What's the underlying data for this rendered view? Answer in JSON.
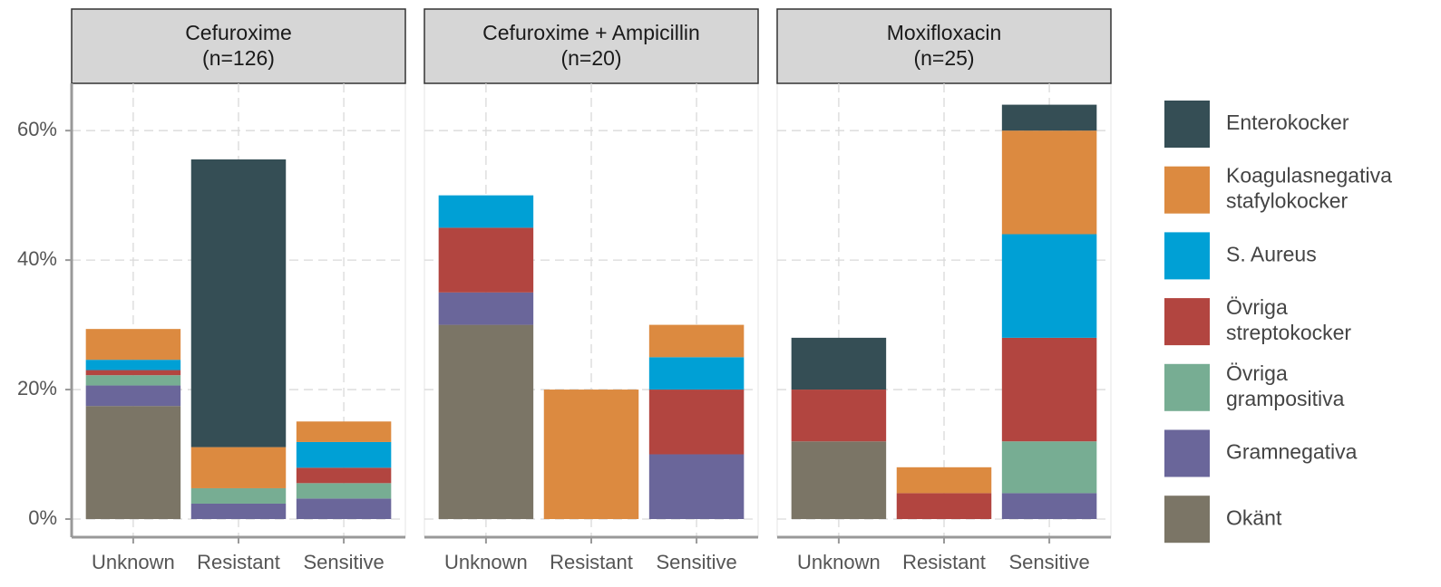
{
  "chart_data": [
    {
      "type": "bar",
      "stacked": true,
      "title": "Cefuroxime",
      "subtitle": "(n=126)",
      "categories": [
        "Unknown",
        "Resistant",
        "Sensitive"
      ],
      "ylim": [
        -2.8,
        67.3
      ],
      "yticks": [
        {
          "value": 0,
          "label": "0%"
        },
        {
          "value": 20,
          "label": "20%"
        },
        {
          "value": 40,
          "label": "40%"
        },
        {
          "value": 60,
          "label": "60%"
        }
      ],
      "grid": true,
      "series": [
        {
          "name": "Okänt",
          "color": "#7b7566",
          "values": [
            17.46,
            0,
            0
          ]
        },
        {
          "name": "Gramnegativa",
          "color": "#6a669a",
          "values": [
            3.17,
            2.38,
            3.17
          ]
        },
        {
          "name": "Övriga grampositiva",
          "color": "#77ad93",
          "values": [
            1.59,
            2.38,
            2.38
          ]
        },
        {
          "name": "Övriga streptokocker",
          "color": "#b24540",
          "values": [
            0.79,
            0,
            2.38
          ]
        },
        {
          "name": "S. Aureus",
          "color": "#00a0d5",
          "values": [
            1.59,
            0,
            3.97
          ]
        },
        {
          "name": "Koagulasnegativa stafylokocker",
          "color": "#dc8a40",
          "values": [
            4.76,
            6.35,
            3.17
          ]
        },
        {
          "name": "Enterokocker",
          "color": "#354e55",
          "values": [
            0,
            44.44,
            0
          ]
        }
      ]
    },
    {
      "type": "bar",
      "stacked": true,
      "title": "Cefuroxime + Ampicillin",
      "subtitle": "(n=20)",
      "categories": [
        "Unknown",
        "Resistant",
        "Sensitive"
      ],
      "ylim": [
        -2.8,
        67.3
      ],
      "yticks": [
        0,
        20,
        40,
        60
      ],
      "grid": true,
      "series": [
        {
          "name": "Okänt",
          "color": "#7b7566",
          "values": [
            30,
            0,
            0
          ]
        },
        {
          "name": "Gramnegativa",
          "color": "#6a669a",
          "values": [
            5,
            0,
            10
          ]
        },
        {
          "name": "Övriga grampositiva",
          "color": "#77ad93",
          "values": [
            0,
            0,
            0
          ]
        },
        {
          "name": "Övriga streptokocker",
          "color": "#b24540",
          "values": [
            10,
            0,
            10
          ]
        },
        {
          "name": "S. Aureus",
          "color": "#00a0d5",
          "values": [
            5,
            0,
            5
          ]
        },
        {
          "name": "Koagulasnegativa stafylokocker",
          "color": "#dc8a40",
          "values": [
            0,
            20,
            5
          ]
        },
        {
          "name": "Enterokocker",
          "color": "#354e55",
          "values": [
            0,
            0,
            0
          ]
        }
      ]
    },
    {
      "type": "bar",
      "stacked": true,
      "title": "Moxifloxacin",
      "subtitle": "(n=25)",
      "categories": [
        "Unknown",
        "Resistant",
        "Sensitive"
      ],
      "ylim": [
        -2.8,
        67.3
      ],
      "yticks": [
        0,
        20,
        40,
        60
      ],
      "grid": true,
      "series": [
        {
          "name": "Okänt",
          "color": "#7b7566",
          "values": [
            12,
            0,
            0
          ]
        },
        {
          "name": "Gramnegativa",
          "color": "#6a669a",
          "values": [
            0,
            0,
            4
          ]
        },
        {
          "name": "Övriga grampositiva",
          "color": "#77ad93",
          "values": [
            0,
            0,
            8
          ]
        },
        {
          "name": "Övriga streptokocker",
          "color": "#b24540",
          "values": [
            8,
            4,
            16
          ]
        },
        {
          "name": "S. Aureus",
          "color": "#00a0d5",
          "values": [
            0,
            0,
            16
          ]
        },
        {
          "name": "Koagulasnegativa stafylokocker",
          "color": "#dc8a40",
          "values": [
            0,
            4,
            16
          ]
        },
        {
          "name": "Enterokocker",
          "color": "#354e55",
          "values": [
            8,
            0,
            4
          ]
        }
      ]
    }
  ]
}
